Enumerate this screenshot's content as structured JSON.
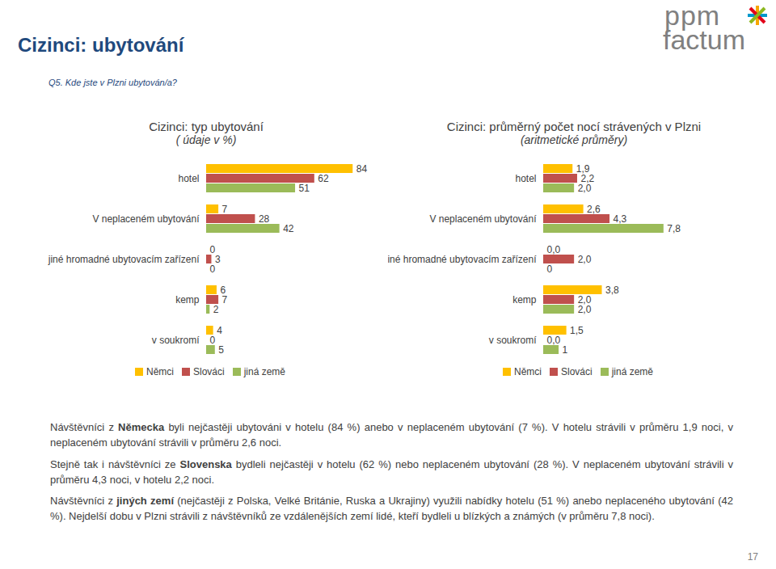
{
  "page": {
    "title": "Cizinci: ubytování",
    "question": "Q5. Kde jste v Plzni ubytován/a?",
    "logo": [
      "ppm",
      "factum"
    ],
    "paragraphs": [
      [
        {
          "text": "Návštěvníci z ",
          "bold": false
        },
        {
          "text": "Německa",
          "bold": true
        },
        {
          "text": " byli nejčastěji ubytováni v hotelu (84 %) anebo v neplaceném ubytování (7 %). V hotelu strávili v průměru 1,9 noci, v neplaceném ubytování strávili v průměru 2,6 noci.",
          "bold": false
        }
      ],
      [
        {
          "text": "Stejně tak i návštěvníci ze ",
          "bold": false
        },
        {
          "text": "Slovenska",
          "bold": true
        },
        {
          "text": " bydleli nejčastěji v hotelu (62 %) nebo neplaceném ubytování (28 %). V neplaceném ubytování strávili v průměru 4,3 noci, v hotelu 2,2 noci.",
          "bold": false
        }
      ],
      [
        {
          "text": "Návštěvníci z ",
          "bold": false
        },
        {
          "text": "jiných zemí",
          "bold": true
        },
        {
          "text": " (nejčastěji z Polska, Velké Británie, Ruska a Ukrajiny) využili nabídky hotelu (51 %) anebo neplaceného ubytování (42 %). Nejdelší dobu v Plzni strávili z návštěvníků ze vzdálenějších zemí lidé, kteří bydleli u blízkých a známých (v průměru 7,8 noci).",
          "bold": false
        }
      ]
    ],
    "page_number": "17"
  },
  "chart_data": [
    {
      "type": "bar",
      "orientation": "horizontal",
      "title": "Cizinci: typ ubytování",
      "subtitle": "( údaje v %)",
      "categories": [
        "hotel",
        "V neplaceném ubytování",
        "jiné hromadné ubytovacím zařízení",
        "kemp",
        "v soukromí"
      ],
      "series": [
        {
          "name": "Němci",
          "color": "#FFC000",
          "values": [
            84,
            7,
            0,
            6,
            4
          ]
        },
        {
          "name": "Slováci",
          "color": "#C0504D",
          "values": [
            62,
            28,
            3,
            7,
            0
          ]
        },
        {
          "name": "jiná země",
          "color": "#9BBB59",
          "values": [
            51,
            42,
            0,
            2,
            5
          ]
        }
      ],
      "xlim": [
        0,
        95
      ],
      "data_labels": true,
      "tick_labels": "y",
      "legend": "bottom",
      "grid": false
    },
    {
      "type": "bar",
      "orientation": "horizontal",
      "title": "Cizinci: průměrný počet nocí strávených v Plzni",
      "subtitle": "(aritmetické průměry)",
      "categories": [
        "hotel",
        "V neplaceném ubytování",
        "jiné hromadné ubytovacím zařízení",
        "kemp",
        "v soukromí"
      ],
      "series": [
        {
          "name": "Němci",
          "color": "#FFC000",
          "values": [
            1.9,
            2.6,
            0.0,
            3.8,
            1.5
          ],
          "value_labels": [
            "1,9",
            "2,6",
            "0,0",
            "3,8",
            "1,5"
          ]
        },
        {
          "name": "Slováci",
          "color": "#C0504D",
          "values": [
            2.2,
            4.3,
            2.0,
            2.0,
            0.0
          ],
          "value_labels": [
            "2,2",
            "4,3",
            "2,0",
            "2,0",
            "0,0"
          ]
        },
        {
          "name": "jiná země",
          "color": "#9BBB59",
          "values": [
            2.0,
            7.8,
            0,
            2.0,
            1
          ],
          "value_labels": [
            "2,0",
            "7,8",
            "0",
            "2,0",
            "1"
          ]
        }
      ],
      "xlim": [
        0,
        13
      ],
      "data_labels": true,
      "tick_labels": "y",
      "legend": "bottom",
      "grid": false
    }
  ]
}
